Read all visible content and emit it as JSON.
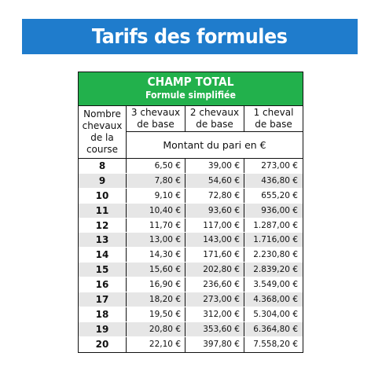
{
  "page_title": "Tarifs des formules",
  "table": {
    "title": "CHAMP TOTAL",
    "subtitle": "Formule simplifiée",
    "col0_header": [
      "Nombre",
      "chevaux",
      "de la",
      "course"
    ],
    "col_headers": [
      [
        "3 chevaux",
        "de base"
      ],
      [
        "2 chevaux",
        "de base"
      ],
      [
        "1 cheval",
        "de base"
      ]
    ],
    "amount_label": "Montant du pari en €",
    "rows": [
      {
        "n": "8",
        "a": "6,50 €",
        "b": "39,00 €",
        "c": "273,00 €"
      },
      {
        "n": "9",
        "a": "7,80 €",
        "b": "54,60 €",
        "c": "436,80 €"
      },
      {
        "n": "10",
        "a": "9,10 €",
        "b": "72,80 €",
        "c": "655,20 €"
      },
      {
        "n": "11",
        "a": "10,40 €",
        "b": "93,60 €",
        "c": "936,00 €"
      },
      {
        "n": "12",
        "a": "11,70 €",
        "b": "117,00 €",
        "c": "1.287,00 €"
      },
      {
        "n": "13",
        "a": "13,00 €",
        "b": "143,00 €",
        "c": "1.716,00 €"
      },
      {
        "n": "14",
        "a": "14,30 €",
        "b": "171,60 €",
        "c": "2.230,80 €"
      },
      {
        "n": "15",
        "a": "15,60 €",
        "b": "202,80 €",
        "c": "2.839,20 €"
      },
      {
        "n": "16",
        "a": "16,90 €",
        "b": "236,60 €",
        "c": "3.549,00 €"
      },
      {
        "n": "17",
        "a": "18,20 €",
        "b": "273,00 €",
        "c": "4.368,00 €"
      },
      {
        "n": "18",
        "a": "19,50 €",
        "b": "312,00 €",
        "c": "5.304,00 €"
      },
      {
        "n": "19",
        "a": "20,80 €",
        "b": "353,60 €",
        "c": "6.364,80 €"
      },
      {
        "n": "20",
        "a": "22,10 €",
        "b": "397,80 €",
        "c": "7.558,20 €"
      }
    ]
  }
}
